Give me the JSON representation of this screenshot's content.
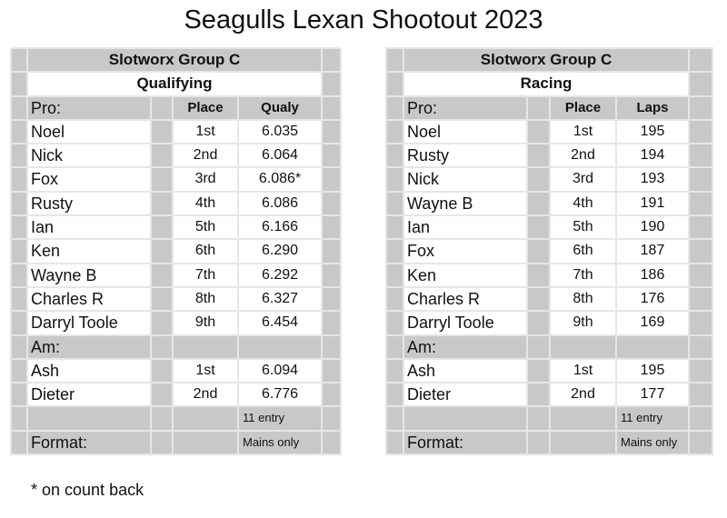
{
  "title": "Seagulls Lexan Shootout 2023",
  "footnote": "* on count back",
  "tables": [
    {
      "id": "left",
      "group": "Slotworx Group C",
      "section": "Qualifying",
      "pro_label": "Pro:",
      "col_place": "Place",
      "col_value": "Qualy",
      "pro": [
        [
          "Noel",
          "1st",
          "6.035"
        ],
        [
          "Nick",
          "2nd",
          "6.064"
        ],
        [
          "Fox",
          "3rd",
          "6.086*"
        ],
        [
          "Rusty",
          "4th",
          "6.086"
        ],
        [
          "Ian",
          "5th",
          "6.166"
        ],
        [
          "Ken",
          "6th",
          "6.290"
        ],
        [
          "Wayne B",
          "7th",
          "6.292"
        ],
        [
          "Charles R",
          "8th",
          "6.327"
        ],
        [
          "Darryl Toole",
          "9th",
          "6.454"
        ]
      ],
      "am_label": "Am:",
      "am": [
        [
          "Ash",
          "1st",
          "6.094"
        ],
        [
          "Dieter",
          "2nd",
          "6.776"
        ]
      ],
      "entry": "11 entry",
      "format_label": "Format:",
      "format": "Mains only"
    },
    {
      "id": "right",
      "group": "Slotworx Group C",
      "section": "Racing",
      "pro_label": "Pro:",
      "col_place": "Place",
      "col_value": "Laps",
      "pro": [
        [
          "Noel",
          "1st",
          "195"
        ],
        [
          "Rusty",
          "2nd",
          "194"
        ],
        [
          "Nick",
          "3rd",
          "193"
        ],
        [
          "Wayne B",
          "4th",
          "191"
        ],
        [
          "Ian",
          "5th",
          "190"
        ],
        [
          "Fox",
          "6th",
          "187"
        ],
        [
          "Ken",
          "7th",
          "186"
        ],
        [
          "Charles R",
          "8th",
          "176"
        ],
        [
          "Darryl Toole",
          "9th",
          "169"
        ]
      ],
      "am_label": "Am:",
      "am": [
        [
          "Ash",
          "1st",
          "195"
        ],
        [
          "Dieter",
          "2nd",
          "177"
        ]
      ],
      "entry": "11 entry",
      "format_label": "Format:",
      "format": "Mains only"
    }
  ]
}
